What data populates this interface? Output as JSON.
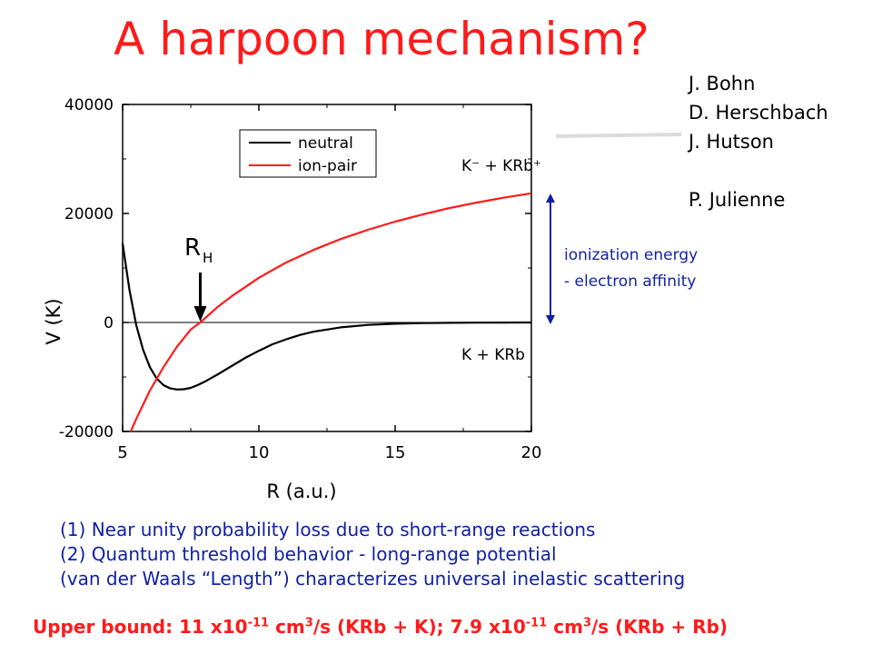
{
  "title": "A harpoon mechanism?",
  "authors": [
    "J. Bohn",
    "D. Herschbach",
    "J. Hutson",
    "",
    "P. Julienne"
  ],
  "chart_data": {
    "type": "line",
    "xlabel": "R (a.u.)",
    "ylabel": "V (K)",
    "xlim": [
      5,
      20
    ],
    "ylim": [
      -20000,
      40000
    ],
    "xticks": [
      5,
      10,
      15,
      20
    ],
    "yticks": [
      -20000,
      0,
      20000,
      40000
    ],
    "xtick_labels": [
      "5",
      "10",
      "15",
      "20"
    ],
    "ytick_labels": [
      "-20000",
      "0",
      "20000",
      "40000"
    ],
    "legend_position": "top",
    "series": [
      {
        "name": "neutral",
        "color": "#000000",
        "x": [
          5.0,
          5.25,
          5.5,
          5.75,
          6.0,
          6.25,
          6.5,
          6.75,
          7.0,
          7.25,
          7.5,
          7.75,
          8.0,
          8.5,
          9.0,
          9.5,
          10.0,
          10.5,
          11.0,
          11.5,
          12.0,
          13.0,
          14.0,
          15.0,
          16.0,
          17.0,
          18.0,
          19.0,
          20.0
        ],
        "y": [
          14500,
          6000,
          -500,
          -5000,
          -8200,
          -10300,
          -11500,
          -12100,
          -12300,
          -12250,
          -12000,
          -11500,
          -10900,
          -9500,
          -8000,
          -6500,
          -5200,
          -4000,
          -3100,
          -2300,
          -1700,
          -900,
          -450,
          -230,
          -120,
          -60,
          -30,
          -15,
          -5
        ]
      },
      {
        "name": "ion-pair",
        "color": "#ff1a1a",
        "x": [
          5.3,
          5.5,
          6.0,
          6.5,
          7.0,
          7.5,
          7.85,
          8.5,
          9.0,
          10.0,
          11.0,
          12.0,
          13.0,
          14.0,
          15.0,
          16.0,
          17.0,
          18.0,
          19.0,
          20.0
        ],
        "y": [
          -20000,
          -17700,
          -12500,
          -8200,
          -4400,
          -1300,
          0,
          2900,
          4800,
          8200,
          11000,
          13300,
          15300,
          17000,
          18500,
          19800,
          21000,
          22000,
          22900,
          23700
        ]
      }
    ],
    "annotations": {
      "rh_label": "R",
      "rh_sub": "H",
      "rh_x": 7.85,
      "upper_asymptote": "K⁻ + KRb⁺",
      "lower_asymptote": "K + KRb",
      "ie_line1": "ionization energy",
      "ie_line2": "- electron affinity"
    }
  },
  "notes": [
    "(1) Near unity probability loss due to short-range reactions",
    "(2) Quantum threshold behavior - long-range potential",
    "(van der Waals “Length”) characterizes universal inelastic scattering"
  ],
  "bound": {
    "prefix": "Upper bound: 11 x10",
    "exp1": "-11",
    "mid1": " cm",
    "exp2": "3",
    "mid2": "/s (KRb + K); 7.9 x10",
    "exp3": "-11",
    "mid3": " cm",
    "exp4": "3",
    "suffix": "/s (KRb + Rb)"
  },
  "colors": {
    "title": "#ff1a1a",
    "notes": "#0f1fa6",
    "arrow": "#0f1fa6"
  }
}
